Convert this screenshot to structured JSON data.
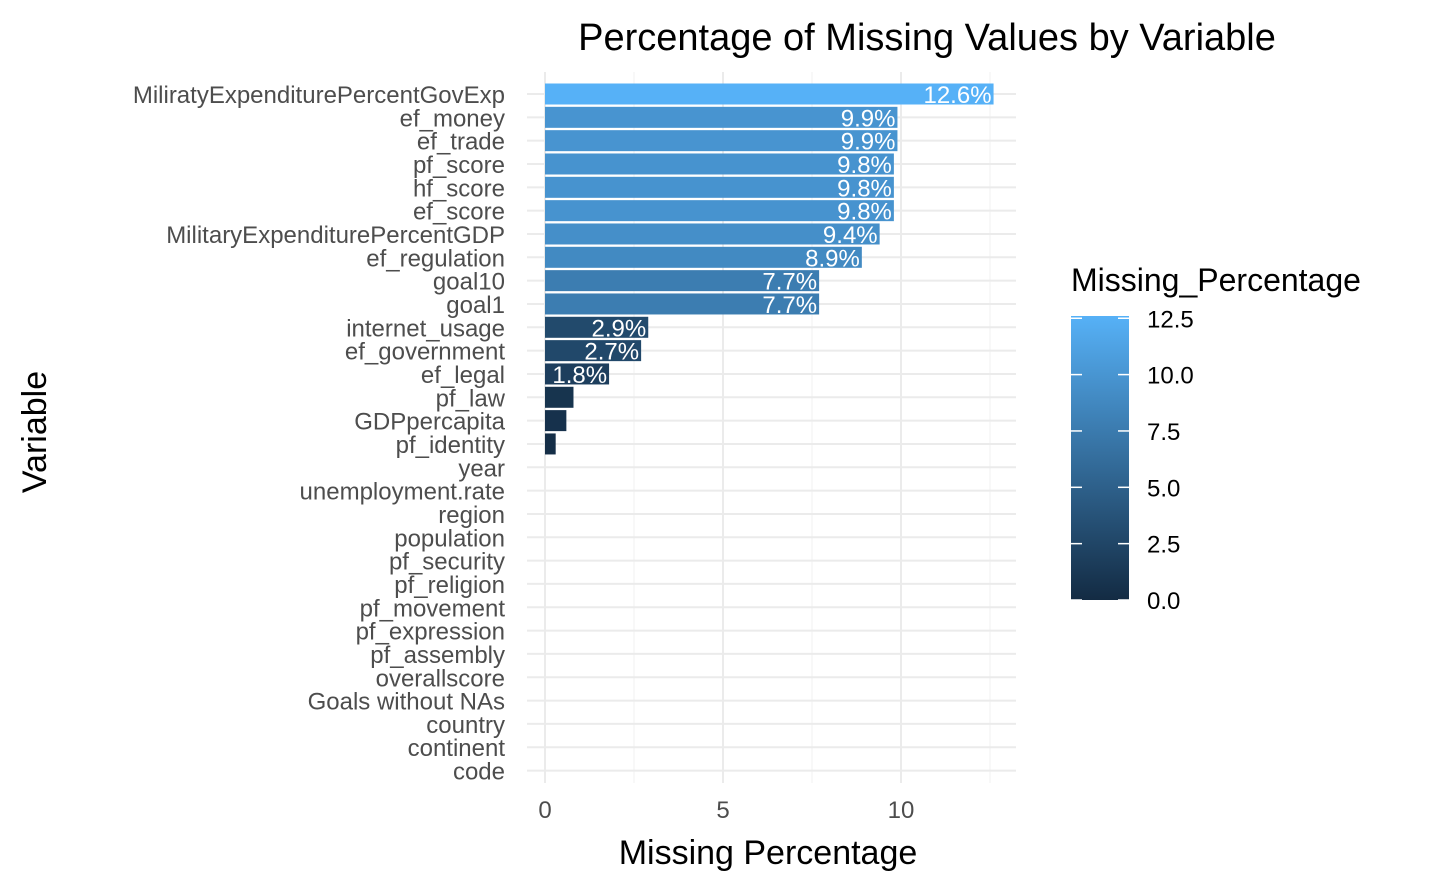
{
  "chart_data": {
    "type": "bar",
    "orientation": "horizontal",
    "title": "Percentage of Missing Values by Variable",
    "xlabel": "Missing Percentage",
    "ylabel": "Variable",
    "xlim": [
      0,
      13
    ],
    "x_ticks": [
      0,
      5,
      10
    ],
    "grid": true,
    "categories": [
      "MiliratyExpenditurePercentGovExp",
      "ef_money",
      "ef_trade",
      "pf_score",
      "hf_score",
      "ef_score",
      "MilitaryExpenditurePercentGDP",
      "ef_regulation",
      "goal10",
      "goal1",
      "internet_usage",
      "ef_government",
      "ef_legal",
      "pf_law",
      "GDPpercapita",
      "pf_identity",
      "year",
      "unemployment.rate",
      "region",
      "population",
      "pf_security",
      "pf_religion",
      "pf_movement",
      "pf_expression",
      "pf_assembly",
      "overallscore",
      "Goals without NAs",
      "country",
      "continent",
      "code"
    ],
    "values": [
      12.6,
      9.9,
      9.9,
      9.8,
      9.8,
      9.8,
      9.4,
      8.9,
      7.7,
      7.7,
      2.9,
      2.7,
      1.8,
      0.8,
      0.6,
      0.3,
      0,
      0,
      0,
      0,
      0,
      0,
      0,
      0,
      0,
      0,
      0,
      0,
      0,
      0
    ],
    "data_labels": [
      "12.6%",
      "9.9%",
      "9.9%",
      "9.8%",
      "9.8%",
      "9.8%",
      "9.4%",
      "8.9%",
      "7.7%",
      "7.7%",
      "2.9%",
      "2.7%",
      "1.8%",
      "",
      "",
      "",
      "",
      "",
      "",
      "",
      "",
      "",
      "",
      "",
      "",
      "",
      "",
      "",
      "",
      ""
    ],
    "legend": {
      "title": "Missing_Percentage",
      "position": "right",
      "type": "colorbar",
      "range": [
        0,
        12.6
      ],
      "ticks": [
        0,
        2.5,
        5,
        7.5,
        10,
        12.5
      ],
      "tick_labels": [
        "0.0",
        "2.5",
        "5.0",
        "7.5",
        "10.0",
        "12.5"
      ],
      "color_low": "#132B43",
      "color_high": "#56B1F7"
    }
  }
}
